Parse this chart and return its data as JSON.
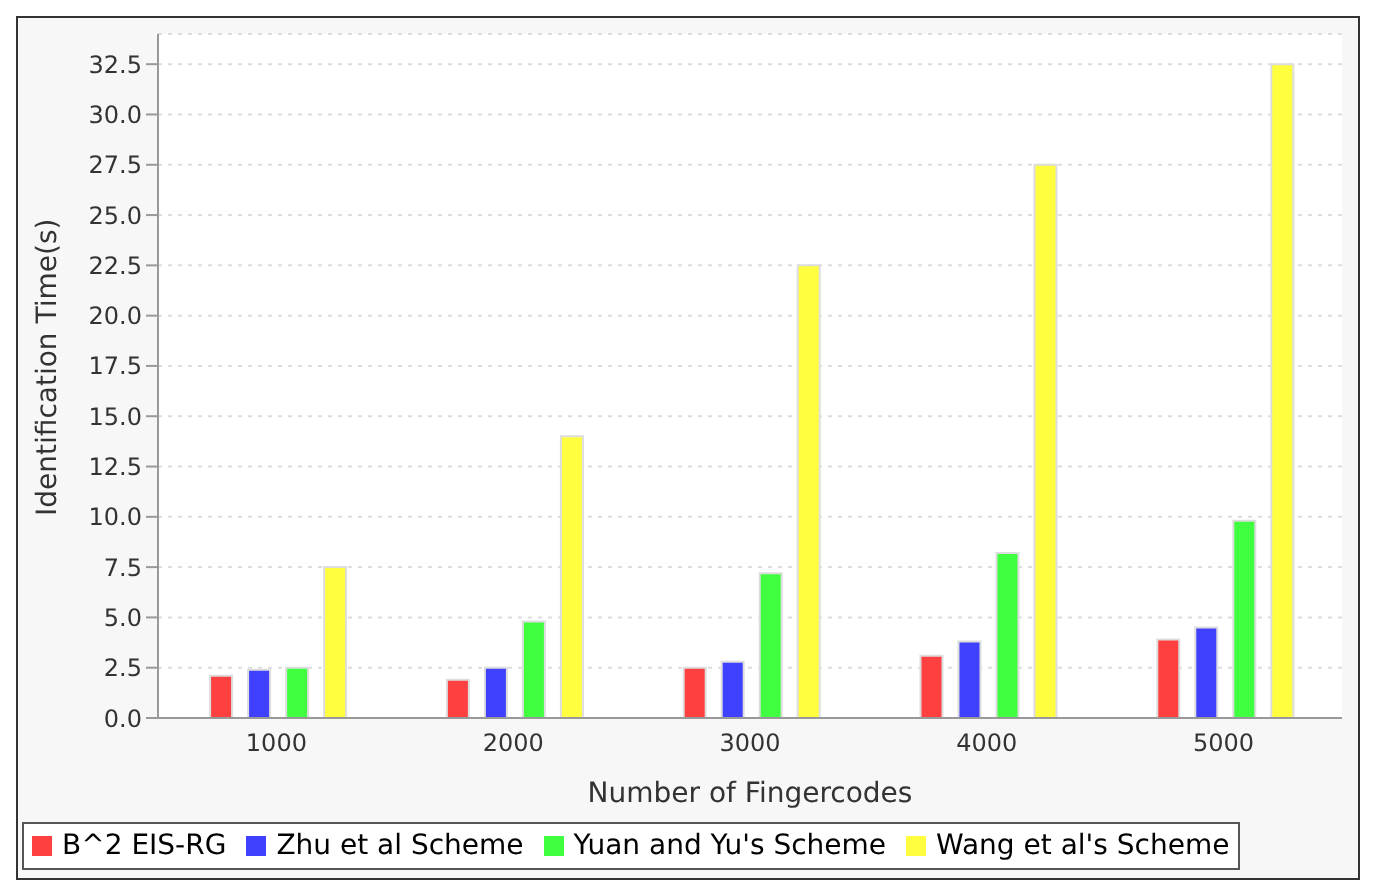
{
  "chart_data": {
    "type": "bar",
    "xlabel": "Number of Fingercodes",
    "ylabel": "Identification Time(s)",
    "categories": [
      "1000",
      "2000",
      "3000",
      "4000",
      "5000"
    ],
    "series": [
      {
        "name": "B^2 EIS-RG",
        "color": "#ff4040",
        "values": [
          2.1,
          1.9,
          2.5,
          3.1,
          3.9
        ]
      },
      {
        "name": "Zhu et al Scheme",
        "color": "#4040ff",
        "values": [
          2.4,
          2.5,
          2.8,
          3.8,
          4.5
        ]
      },
      {
        "name": "Yuan and Yu's Scheme",
        "color": "#40ff40",
        "values": [
          2.5,
          4.8,
          7.2,
          8.2,
          9.8
        ]
      },
      {
        "name": "Wang et al's Scheme",
        "color": "#ffff40",
        "values": [
          7.5,
          14,
          22.5,
          27.5,
          32.5
        ]
      }
    ],
    "ylim": [
      0,
      34
    ],
    "yticks": [
      {
        "value": 0,
        "label": "0.0"
      },
      {
        "value": 2.5,
        "label": "2.5"
      },
      {
        "value": 5,
        "label": "5.0"
      },
      {
        "value": 7.5,
        "label": "7.5"
      },
      {
        "value": 10,
        "label": "10.0"
      },
      {
        "value": 12.5,
        "label": "12.5"
      },
      {
        "value": 15,
        "label": "15.0"
      },
      {
        "value": 17.5,
        "label": "17.5"
      },
      {
        "value": 20,
        "label": "20.0"
      },
      {
        "value": 22.5,
        "label": "22.5"
      },
      {
        "value": 25,
        "label": "25.0"
      },
      {
        "value": 27.5,
        "label": "27.5"
      },
      {
        "value": 30,
        "label": "30.0"
      },
      {
        "value": 32.5,
        "label": "32.5"
      }
    ],
    "grid": "y",
    "legend": "bottom"
  }
}
